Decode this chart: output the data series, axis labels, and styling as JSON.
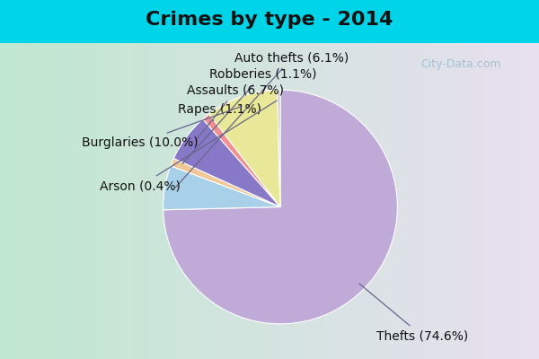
{
  "title": "Crimes by type - 2014",
  "labels": [
    "Thefts",
    "Auto thefts",
    "Robberies",
    "Assaults",
    "Rapes",
    "Burglaries",
    "Arson"
  ],
  "pct_labels": [
    "Thefts (74.6%)",
    "Auto thefts (6.1%)",
    "Robberies (1.1%)",
    "Assaults (6.7%)",
    "Rapes (1.1%)",
    "Burglaries (10.0%)",
    "Arson (0.4%)"
  ],
  "values": [
    74.6,
    6.1,
    1.1,
    6.7,
    1.1,
    10.0,
    0.4
  ],
  "colors": [
    "#c0aad8",
    "#a8d0e8",
    "#f0c898",
    "#8878c8",
    "#f09090",
    "#e8e898",
    "#c8c8c8"
  ],
  "background_top": "#00d4e8",
  "title_fontsize": 16,
  "label_fontsize": 10,
  "startangle": 90
}
